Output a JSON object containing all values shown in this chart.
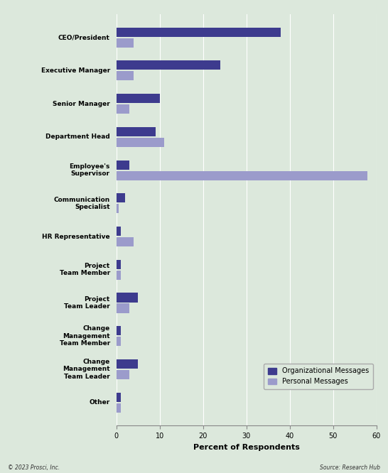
{
  "categories": [
    "CEO/President",
    "Executive Manager",
    "Senior Manager",
    "Department Head",
    "Employee's\nSupervisor",
    "Communication\nSpecialist",
    "HR Representative",
    "Project\nTeam Member",
    "Project\nTeam Leader",
    "Change\nManagement\nTeam Member",
    "Change\nManagement\nTeam Leader",
    "Other"
  ],
  "org_messages": [
    38,
    24,
    10,
    9,
    3,
    2,
    1,
    1,
    5,
    1,
    5,
    1
  ],
  "personal_messages": [
    4,
    4,
    3,
    11,
    58,
    0.5,
    4,
    1,
    3,
    1,
    3,
    1
  ],
  "color_org": "#3d3b8e",
  "color_personal": "#9b9bcb",
  "xlabel": "Percent of Respondents",
  "legend_org": "Organizational Messages",
  "legend_personal": "Personal Messages",
  "xlim": [
    0,
    60
  ],
  "xticks": [
    0,
    10,
    20,
    30,
    40,
    50,
    60
  ],
  "footer_left": "© 2023 Prosci, Inc.",
  "footer_right": "Source: Research Hub",
  "background_color": "#dce8dc"
}
